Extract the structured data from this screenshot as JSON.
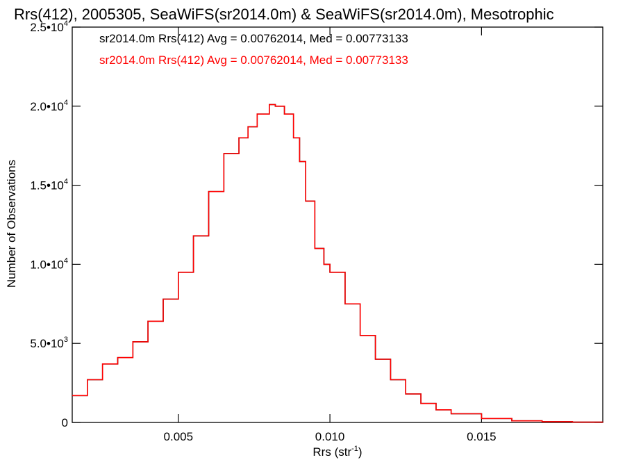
{
  "chart_data": {
    "type": "line",
    "step": true,
    "title": "Rrs(412), 2005305, SeaWiFS(sr2014.0m) & SeaWiFS(sr2014.0m), Mesotrophic",
    "xlabel_base": "Rrs (str",
    "xlabel_sup": "-1",
    "xlabel_tail": ")",
    "ylabel": "Number of Observations",
    "xlim": [
      0.0015,
      0.019
    ],
    "ylim": [
      0,
      25000
    ],
    "x_ticks": [
      {
        "value": 0.005,
        "label": "0.005"
      },
      {
        "value": 0.01,
        "label": "0.010"
      },
      {
        "value": 0.015,
        "label": "0.015"
      }
    ],
    "y_ticks": [
      {
        "value": 0,
        "mantissa": "0",
        "exponent": ""
      },
      {
        "value": 5000,
        "mantissa": "5.0•10",
        "exponent": "3"
      },
      {
        "value": 10000,
        "mantissa": "1.0•10",
        "exponent": "4"
      },
      {
        "value": 15000,
        "mantissa": "1.5•10",
        "exponent": "4"
      },
      {
        "value": 20000,
        "mantissa": "2.0•10",
        "exponent": "4"
      },
      {
        "value": 25000,
        "mantissa": "2.5•10",
        "exponent": "4"
      }
    ],
    "legend": [
      {
        "text": "sr2014.0m Rrs(412) Avg = 0.00762014, Med = 0.00773133",
        "color": "#000000"
      },
      {
        "text": "sr2014.0m Rrs(412) Avg = 0.00762014, Med = 0.00773133",
        "color": "#ff0000"
      }
    ],
    "series": [
      {
        "color": "#000000",
        "ref": "shared"
      },
      {
        "color": "#ff0000",
        "ref": "shared"
      }
    ],
    "x": [
      0.0015,
      0.002,
      0.0025,
      0.003,
      0.0035,
      0.004,
      0.0045,
      0.005,
      0.0055,
      0.006,
      0.0065,
      0.007,
      0.0073,
      0.0076,
      0.008,
      0.0082,
      0.0085,
      0.0088,
      0.009,
      0.0092,
      0.0095,
      0.0098,
      0.01,
      0.0105,
      0.011,
      0.0115,
      0.012,
      0.0125,
      0.013,
      0.0135,
      0.014,
      0.015,
      0.016,
      0.017,
      0.018,
      0.019
    ],
    "y": [
      1700,
      2700,
      3700,
      4100,
      5100,
      6400,
      7800,
      9500,
      11800,
      14600,
      17000,
      18000,
      18700,
      19500,
      20100,
      20000,
      19500,
      18000,
      16500,
      14000,
      11000,
      10000,
      9500,
      7500,
      5500,
      4000,
      2700,
      1800,
      1200,
      800,
      550,
      250,
      100,
      50,
      20,
      10
    ]
  }
}
